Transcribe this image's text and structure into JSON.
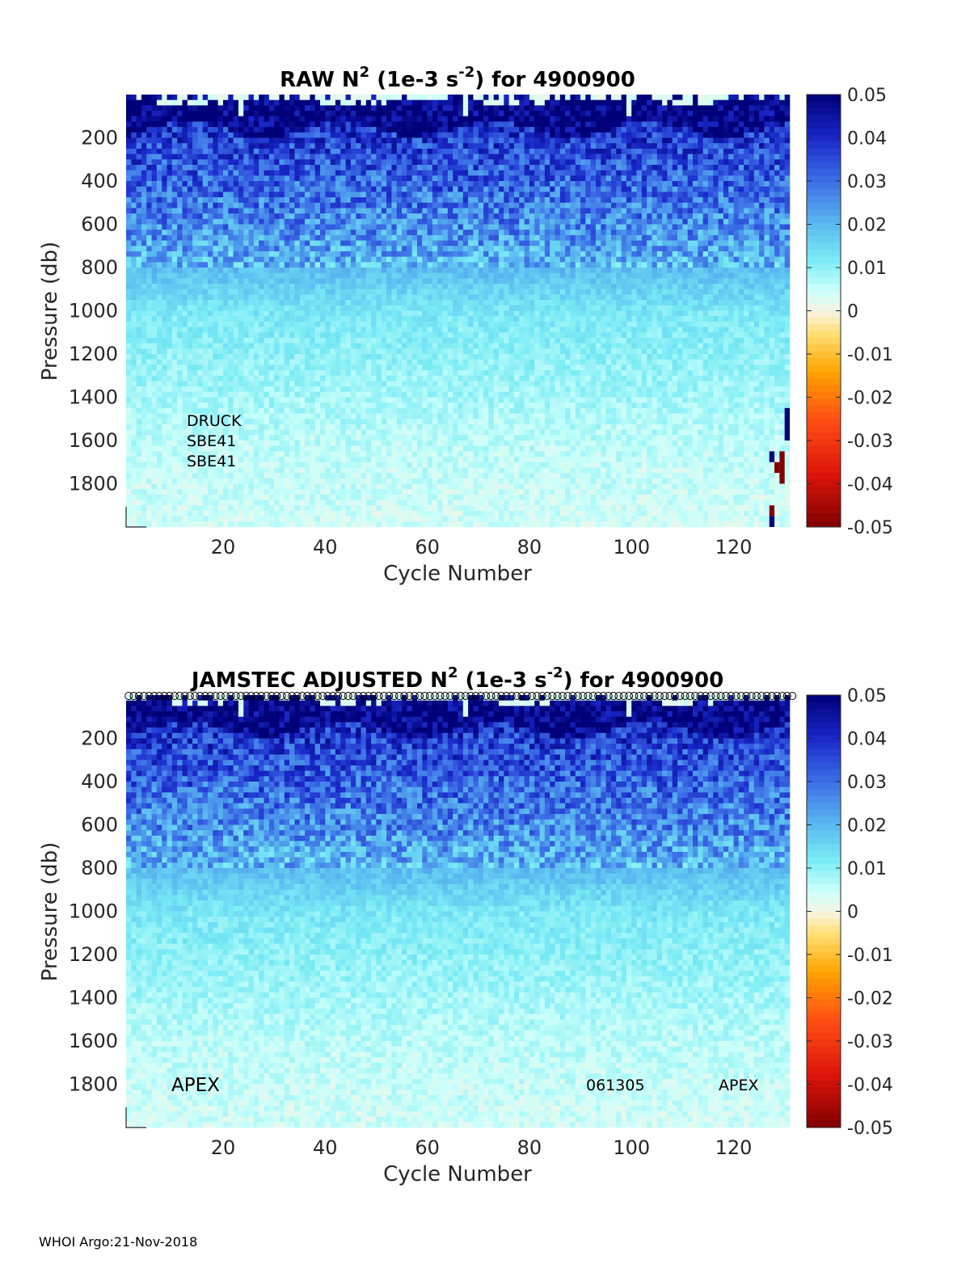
{
  "chart_data": [
    {
      "type": "heatmap",
      "title_prefix": "RAW N",
      "title_sup1": "2",
      "title_mid": " (1e-3 s",
      "title_sup2": "-2",
      "title_suffix": ") for 4900900",
      "xlabel": "Cycle Number",
      "ylabel": "Pressure (db)",
      "xlim": [
        1,
        131
      ],
      "ylim": [
        0,
        2000
      ],
      "y_reversed": true,
      "x_ticks": [
        "20",
        "40",
        "60",
        "80",
        "100",
        "120"
      ],
      "y_ticks": [
        "200",
        "400",
        "600",
        "800",
        "1000",
        "1200",
        "1400",
        "1600",
        "1800"
      ],
      "colorbar": {
        "colormap": "blue-cyan-white-yellow-red",
        "clim": [
          -0.05,
          0.05
        ],
        "ticks": [
          "0.05",
          "0.04",
          "0.03",
          "0.02",
          "0.01",
          "0",
          "-0.01",
          "-0.02",
          "-0.03",
          "-0.04",
          "-0.05"
        ]
      },
      "annotations": [
        "DRUCK",
        "SBE41",
        "SBE41"
      ],
      "profile_markers": false,
      "anomalies": [
        {
          "cycle": 130,
          "p_from": 1450,
          "p_to": 1600,
          "value": 0.05
        },
        {
          "cycle": 129,
          "p_from": 1650,
          "p_to": 1800,
          "value": -0.05
        },
        {
          "cycle": 127,
          "p_from": 1650,
          "p_to": 1700,
          "value": 0.05
        },
        {
          "cycle": 128,
          "p_from": 1700,
          "p_to": 1750,
          "value": -0.05
        },
        {
          "cycle": 127,
          "p_from": 1900,
          "p_to": 1950,
          "value": -0.05
        },
        {
          "cycle": 127,
          "p_from": 1950,
          "p_to": 2000,
          "value": 0.05
        }
      ]
    },
    {
      "type": "heatmap",
      "title_prefix": "JAMSTEC  ADJUSTED N",
      "title_sup1": "2",
      "title_mid": " (1e-3 s",
      "title_sup2": "-2",
      "title_suffix": ") for 4900900",
      "xlabel": "Cycle Number",
      "ylabel": "Pressure (db)",
      "xlim": [
        1,
        131
      ],
      "ylim": [
        0,
        2000
      ],
      "y_reversed": true,
      "x_ticks": [
        "20",
        "40",
        "60",
        "80",
        "100",
        "120"
      ],
      "y_ticks": [
        "200",
        "400",
        "600",
        "800",
        "1000",
        "1200",
        "1400",
        "1600",
        "1800"
      ],
      "colorbar": {
        "colormap": "blue-cyan-white-yellow-red",
        "clim": [
          -0.05,
          0.05
        ],
        "ticks": [
          "0.05",
          "0.04",
          "0.03",
          "0.02",
          "0.01",
          "0",
          "-0.01",
          "-0.02",
          "-0.03",
          "-0.04",
          "-0.05"
        ]
      },
      "annotations_left": "APEX",
      "annotations_right": [
        "061305",
        "APEX"
      ],
      "profile_markers": true,
      "anomalies": []
    }
  ],
  "footer": "WHOI Argo:21-Nov-2018"
}
